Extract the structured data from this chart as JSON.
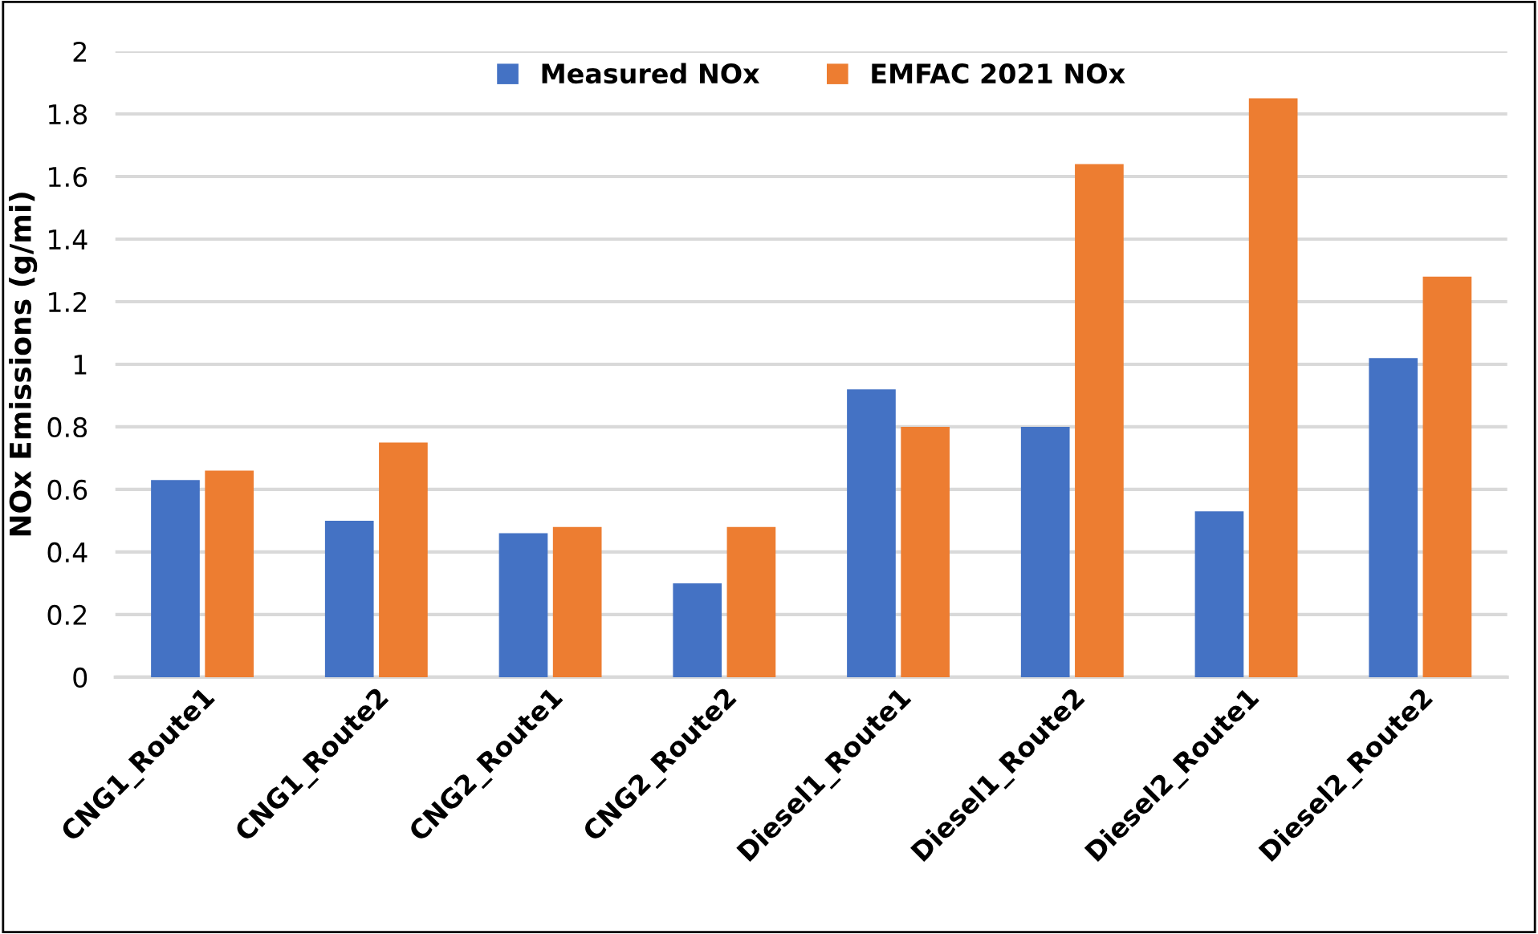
{
  "chart_data": {
    "type": "bar",
    "ylabel": "NOx Emissions (g/mi)",
    "categories": [
      "CNG1_Route1",
      "CNG1_Route2",
      "CNG2_Route1",
      "CNG2_Route2",
      "Diesel1_Route1",
      "Diesel1_Route2",
      "Diesel2_Route1",
      "Diesel2_Route2"
    ],
    "series": [
      {
        "name": "Measured NOx",
        "color": "#4472c4",
        "values": [
          0.63,
          0.5,
          0.46,
          0.3,
          0.92,
          0.8,
          0.53,
          1.02
        ]
      },
      {
        "name": "EMFAC 2021 NOx",
        "color": "#ed7d31",
        "values": [
          0.66,
          0.75,
          0.48,
          0.48,
          0.8,
          1.64,
          1.85,
          1.28
        ]
      }
    ],
    "ylim": [
      0,
      2
    ],
    "yticks": [
      0,
      0.2,
      0.4,
      0.6,
      0.8,
      1,
      1.2,
      1.4,
      1.6,
      1.8,
      2
    ],
    "grid": "y",
    "legend": "top"
  }
}
